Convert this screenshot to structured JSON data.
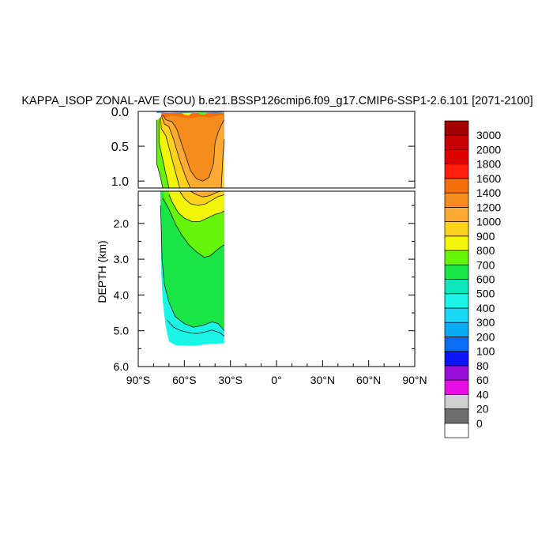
{
  "chart_data": {
    "type": "contour",
    "title": "KAPPA_ISOP ZONAL-AVE (SOU) b.e21.BSSP126cmip6.f09_g17.CMIP6-SSP1-2.6.101 [2071-2100]",
    "xlabel": "",
    "ylabel": "DEPTH (km)",
    "xlim": [
      -90,
      90
    ],
    "ylim_upper": [
      0,
      1.1
    ],
    "ylim_lower": [
      1.1,
      6.0
    ],
    "x_ticks": [
      {
        "value": -90,
        "label": "90°S"
      },
      {
        "value": -60,
        "label": "60°S"
      },
      {
        "value": -30,
        "label": "30°S"
      },
      {
        "value": 0,
        "label": "0°"
      },
      {
        "value": 30,
        "label": "30°N"
      },
      {
        "value": 60,
        "label": "60°N"
      },
      {
        "value": 90,
        "label": "90°N"
      }
    ],
    "y_ticks_upper": [
      {
        "value": 0.0,
        "label": "0.0"
      },
      {
        "value": 0.5,
        "label": "0.5"
      },
      {
        "value": 1.0,
        "label": "1.0"
      }
    ],
    "y_ticks_lower": [
      {
        "value": 2.0,
        "label": "2.0"
      },
      {
        "value": 3.0,
        "label": "3.0"
      },
      {
        "value": 4.0,
        "label": "4.0"
      },
      {
        "value": 5.0,
        "label": "5.0"
      },
      {
        "value": 6.0,
        "label": "6.0"
      }
    ],
    "colorbar": {
      "levels": [
        "0",
        "20",
        "40",
        "60",
        "80",
        "100",
        "200",
        "300",
        "400",
        "500",
        "600",
        "700",
        "800",
        "900",
        "1000",
        "1200",
        "1400",
        "1600",
        "1800",
        "2000",
        "3000"
      ],
      "colors": [
        "#ffffff",
        "#6e6e6e",
        "#cfcfcf",
        "#e610e6",
        "#9a0fd9",
        "#0a14f5",
        "#0a6ef5",
        "#0aaaf5",
        "#19d7f5",
        "#19f5e6",
        "#0fe6be",
        "#19e646",
        "#64f50a",
        "#f0f50a",
        "#ffd21e",
        "#ffaa32",
        "#f58c1e",
        "#f56e0a",
        "#ff1e0a",
        "#e10000",
        "#c80000",
        "#a50000"
      ]
    },
    "regions": [
      {
        "name": "deep-cyan-shelf",
        "level_index": 8,
        "lower": [
          [
            -75.5,
            1.35
          ],
          [
            -75,
            3.4
          ],
          [
            -74,
            4.2
          ],
          [
            -72,
            4.9
          ],
          [
            -70,
            5.3
          ],
          [
            -66,
            5.4
          ],
          [
            -58,
            5.42
          ],
          [
            -52,
            5.42
          ],
          [
            -46,
            5.38
          ],
          [
            -40,
            5.36
          ],
          [
            -34,
            5.35
          ],
          [
            -34,
            1.1
          ],
          [
            -75.5,
            1.1
          ]
        ]
      },
      {
        "name": "abyssal-teal",
        "level_index": 10,
        "lower": [
          [
            -75.5,
            1.1
          ],
          [
            -75.5,
            1.5
          ],
          [
            -75,
            2.2
          ],
          [
            -74.5,
            3.0
          ],
          [
            -73,
            3.7
          ],
          [
            -70,
            4.2
          ],
          [
            -66,
            4.6
          ],
          [
            -60,
            4.8
          ],
          [
            -54,
            4.9
          ],
          [
            -48,
            4.85
          ],
          [
            -42,
            4.75
          ],
          [
            -38,
            4.8
          ],
          [
            -35,
            4.95
          ],
          [
            -34,
            5.0
          ],
          [
            -34,
            1.1
          ]
        ]
      },
      {
        "name": "deep-green",
        "level_index": 11,
        "upper": [
          [
            -78,
            0.12
          ],
          [
            -78,
            0.75
          ],
          [
            -76,
            0.9
          ],
          [
            -74,
            1.1
          ],
          [
            -34,
            1.1
          ],
          [
            -34,
            0.1
          ]
        ],
        "lower": [
          [
            -74,
            1.1
          ],
          [
            -73,
            1.3
          ],
          [
            -70,
            1.6
          ],
          [
            -66,
            2.0
          ],
          [
            -62,
            2.3
          ],
          [
            -57,
            2.6
          ],
          [
            -52,
            2.8
          ],
          [
            -47,
            2.95
          ],
          [
            -43,
            2.9
          ],
          [
            -39,
            2.75
          ],
          [
            -36,
            2.65
          ],
          [
            -34,
            2.6
          ],
          [
            -34,
            1.1
          ]
        ]
      },
      {
        "name": "lime-tongue",
        "level_index": 12,
        "upper": [
          [
            -76.5,
            0.1
          ],
          [
            -76.5,
            0.45
          ],
          [
            -75,
            0.6
          ],
          [
            -72,
            0.9
          ],
          [
            -70,
            1.1
          ],
          [
            -34,
            1.1
          ],
          [
            -34,
            0.1
          ]
        ],
        "lower": [
          [
            -70,
            1.1
          ],
          [
            -68,
            1.4
          ],
          [
            -64,
            1.7
          ],
          [
            -60,
            1.85
          ],
          [
            -55,
            1.95
          ],
          [
            -50,
            1.95
          ],
          [
            -45,
            1.85
          ],
          [
            -40,
            1.75
          ],
          [
            -36,
            1.7
          ],
          [
            -34,
            1.65
          ],
          [
            -34,
            1.1
          ]
        ]
      },
      {
        "name": "yellow-core",
        "level_index": 13,
        "upper": [
          [
            -75.5,
            0.08
          ],
          [
            -75,
            0.25
          ],
          [
            -72,
            0.35
          ],
          [
            -69,
            0.6
          ],
          [
            -66,
            0.85
          ],
          [
            -63,
            1.1
          ],
          [
            -34,
            1.1
          ],
          [
            -34,
            0.08
          ]
        ],
        "lower": [
          [
            -63,
            1.1
          ],
          [
            -60,
            1.3
          ],
          [
            -56,
            1.45
          ],
          [
            -51,
            1.5
          ],
          [
            -46,
            1.45
          ],
          [
            -42,
            1.35
          ],
          [
            -38,
            1.25
          ],
          [
            -35,
            1.2
          ],
          [
            -34,
            1.2
          ],
          [
            -34,
            1.1
          ]
        ]
      },
      {
        "name": "gold-core",
        "level_index": 14,
        "upper": [
          [
            -75,
            0.06
          ],
          [
            -73,
            0.18
          ],
          [
            -70,
            0.22
          ],
          [
            -67,
            0.4
          ],
          [
            -63,
            0.7
          ],
          [
            -59,
            0.95
          ],
          [
            -56,
            1.1
          ],
          [
            -36,
            1.1
          ],
          [
            -35,
            0.7
          ],
          [
            -34,
            0.4
          ],
          [
            -34,
            0.06
          ]
        ],
        "lower": [
          [
            -56,
            1.1
          ],
          [
            -52,
            1.2
          ],
          [
            -48,
            1.26
          ],
          [
            -45,
            1.24
          ],
          [
            -42,
            1.2
          ],
          [
            -39,
            1.13
          ],
          [
            -36,
            1.1
          ]
        ]
      },
      {
        "name": "orange-core",
        "level_index": 15,
        "upper": [
          [
            -74,
            0.05
          ],
          [
            -72,
            0.12
          ],
          [
            -68,
            0.15
          ],
          [
            -65,
            0.25
          ],
          [
            -62,
            0.45
          ],
          [
            -59,
            0.65
          ],
          [
            -56,
            0.85
          ],
          [
            -52,
            0.97
          ],
          [
            -48,
            1.0
          ],
          [
            -44,
            0.95
          ],
          [
            -41,
            0.75
          ],
          [
            -40,
            0.45
          ],
          [
            -38,
            0.3
          ],
          [
            -36,
            0.2
          ],
          [
            -34,
            0.12
          ],
          [
            -34,
            0.04
          ]
        ]
      },
      {
        "name": "surface-dark-orange",
        "level_index": 16,
        "upper": [
          [
            -75,
            0.02
          ],
          [
            -75,
            0.07
          ],
          [
            -72,
            0.08
          ],
          [
            -68,
            0.06
          ],
          [
            -62,
            0.08
          ],
          [
            -56,
            0.1
          ],
          [
            -50,
            0.07
          ],
          [
            -44,
            0.09
          ],
          [
            -38,
            0.06
          ],
          [
            -34,
            0.05
          ],
          [
            -34,
            0.02
          ]
        ]
      },
      {
        "name": "surface-lime-strip",
        "level_index": 12,
        "upper": [
          [
            -62,
            0.01
          ],
          [
            -60,
            0.05
          ],
          [
            -57,
            0.06
          ],
          [
            -55,
            0.02
          ]
        ]
      },
      {
        "name": "surface-green-patch",
        "level_index": 11,
        "upper": [
          [
            -52,
            0.005
          ],
          [
            -50,
            0.04
          ],
          [
            -47,
            0.05
          ],
          [
            -45,
            0.02
          ]
        ]
      },
      {
        "name": "surface-navy-skin",
        "level_index": 5,
        "upper": [
          [
            -78,
            0
          ],
          [
            -78,
            0.02
          ],
          [
            -70,
            0.015
          ],
          [
            -60,
            0.02
          ],
          [
            -50,
            0.012
          ],
          [
            -40,
            0.02
          ],
          [
            -34,
            0.015
          ],
          [
            -34,
            0
          ]
        ]
      }
    ],
    "contours": [
      {
        "name": "contour-600-700",
        "lower": [
          [
            -74,
            1.3
          ],
          [
            -70,
            1.6
          ],
          [
            -66,
            2.0
          ],
          [
            -62,
            2.3
          ],
          [
            -57,
            2.6
          ],
          [
            -52,
            2.8
          ],
          [
            -47,
            2.95
          ],
          [
            -43,
            2.9
          ],
          [
            -39,
            2.75
          ],
          [
            -36,
            2.65
          ],
          [
            -34,
            2.6
          ]
        ]
      },
      {
        "name": "contour-700-800",
        "lower": [
          [
            -70,
            1.2
          ],
          [
            -68,
            1.4
          ],
          [
            -64,
            1.7
          ],
          [
            -60,
            1.85
          ],
          [
            -55,
            1.95
          ],
          [
            -50,
            1.95
          ],
          [
            -45,
            1.85
          ],
          [
            -40,
            1.75
          ],
          [
            -36,
            1.7
          ],
          [
            -34,
            1.65
          ]
        ]
      },
      {
        "name": "contour-800-900",
        "lower": [
          [
            -63,
            1.1
          ],
          [
            -60,
            1.3
          ],
          [
            -56,
            1.45
          ],
          [
            -51,
            1.5
          ],
          [
            -46,
            1.45
          ],
          [
            -42,
            1.35
          ],
          [
            -38,
            1.25
          ],
          [
            -34,
            1.2
          ]
        ]
      },
      {
        "name": "contour-900-1000",
        "lower": [
          [
            -56,
            1.1
          ],
          [
            -52,
            1.2
          ],
          [
            -48,
            1.26
          ],
          [
            -45,
            1.24
          ],
          [
            -42,
            1.2
          ],
          [
            -39,
            1.13
          ],
          [
            -36,
            1.1
          ]
        ]
      },
      {
        "name": "contour-500-600",
        "lower": [
          [
            -75.5,
            1.5
          ],
          [
            -75,
            2.2
          ],
          [
            -74.5,
            3.0
          ],
          [
            -73,
            3.7
          ],
          [
            -70,
            4.2
          ],
          [
            -66,
            4.6
          ],
          [
            -60,
            4.8
          ],
          [
            -54,
            4.9
          ],
          [
            -48,
            4.85
          ],
          [
            -42,
            4.75
          ],
          [
            -38,
            4.8
          ],
          [
            -34,
            5.0
          ]
        ]
      },
      {
        "name": "contour-deep-inner",
        "lower": [
          [
            -71,
            4.7
          ],
          [
            -67,
            4.9
          ],
          [
            -62,
            5.0
          ],
          [
            -57,
            5.05
          ],
          [
            -52,
            5.08
          ],
          [
            -47,
            5.04
          ],
          [
            -42,
            4.98
          ],
          [
            -37,
            5.05
          ],
          [
            -34,
            5.15
          ]
        ]
      },
      {
        "name": "contour-upper-600",
        "upper": [
          [
            -78,
            0.12
          ],
          [
            -78,
            0.75
          ],
          [
            -76,
            0.9
          ],
          [
            -74,
            1.1
          ]
        ]
      },
      {
        "name": "contour-upper-700",
        "upper": [
          [
            -76.5,
            0.1
          ],
          [
            -76.5,
            0.45
          ],
          [
            -75,
            0.6
          ],
          [
            -72,
            0.9
          ],
          [
            -70,
            1.1
          ]
        ]
      },
      {
        "name": "contour-upper-800",
        "upper": [
          [
            -75.5,
            0.08
          ],
          [
            -75,
            0.25
          ],
          [
            -72,
            0.35
          ],
          [
            -69,
            0.6
          ],
          [
            -66,
            0.85
          ],
          [
            -63,
            1.1
          ]
        ]
      },
      {
        "name": "contour-upper-900",
        "upper": [
          [
            -75,
            0.06
          ],
          [
            -73,
            0.18
          ],
          [
            -70,
            0.22
          ],
          [
            -67,
            0.4
          ],
          [
            -63,
            0.7
          ],
          [
            -59,
            0.95
          ],
          [
            -56,
            1.1
          ]
        ]
      },
      {
        "name": "contour-upper-1000",
        "upper": [
          [
            -74,
            0.05
          ],
          [
            -72,
            0.12
          ],
          [
            -68,
            0.15
          ],
          [
            -65,
            0.25
          ],
          [
            -62,
            0.45
          ],
          [
            -59,
            0.65
          ],
          [
            -56,
            0.85
          ],
          [
            -52,
            0.97
          ],
          [
            -48,
            1.0
          ],
          [
            -44,
            0.95
          ],
          [
            -41,
            0.75
          ],
          [
            -40,
            0.45
          ],
          [
            -38,
            0.3
          ],
          [
            -36,
            0.2
          ],
          [
            -34,
            0.12
          ]
        ]
      },
      {
        "name": "contour-upper-1000-east",
        "upper": [
          [
            -36,
            1.1
          ],
          [
            -35,
            0.7
          ],
          [
            -34,
            0.4
          ]
        ]
      }
    ]
  }
}
